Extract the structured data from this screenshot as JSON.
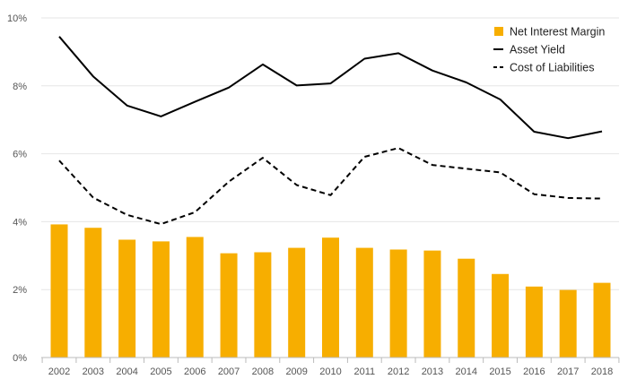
{
  "chart_data": {
    "type": "bar",
    "categories": [
      "2002",
      "2003",
      "2004",
      "2005",
      "2006",
      "2007",
      "2008",
      "2009",
      "2010",
      "2011",
      "2012",
      "2013",
      "2014",
      "2015",
      "2016",
      "2017",
      "2018"
    ],
    "series": [
      {
        "name": "Net Interest Margin",
        "type": "bar",
        "values": [
          3.92,
          3.82,
          3.47,
          3.42,
          3.55,
          3.07,
          3.1,
          3.23,
          3.53,
          3.23,
          3.18,
          3.15,
          2.91,
          2.46,
          2.09,
          1.99,
          2.2
        ]
      },
      {
        "name": "Asset Yield",
        "type": "line",
        "style": "solid",
        "values": [
          9.45,
          8.28,
          7.42,
          7.1,
          7.53,
          7.95,
          8.63,
          8.01,
          8.07,
          8.8,
          8.96,
          8.45,
          8.1,
          7.6,
          6.65,
          6.46,
          6.66
        ]
      },
      {
        "name": "Cost of Liabilities",
        "type": "line",
        "style": "dashed",
        "values": [
          5.8,
          4.71,
          4.2,
          3.93,
          4.28,
          5.18,
          5.88,
          5.08,
          4.78,
          5.91,
          6.17,
          5.67,
          5.56,
          5.45,
          4.81,
          4.7,
          4.68
        ]
      }
    ],
    "ylim": [
      0,
      10
    ],
    "yticks": [
      0,
      2,
      4,
      6,
      8,
      10
    ],
    "ytick_labels": [
      "0%",
      "2%",
      "4%",
      "6%",
      "8%",
      "10%"
    ],
    "title": "",
    "xlabel": "",
    "ylabel": "",
    "grid": true,
    "legend_position": "top-right",
    "colors": {
      "bar": "#F7AE00",
      "line": "#000000",
      "grid": "#e6e6e6",
      "axis": "#bbbbbb",
      "text": "#555555"
    }
  }
}
